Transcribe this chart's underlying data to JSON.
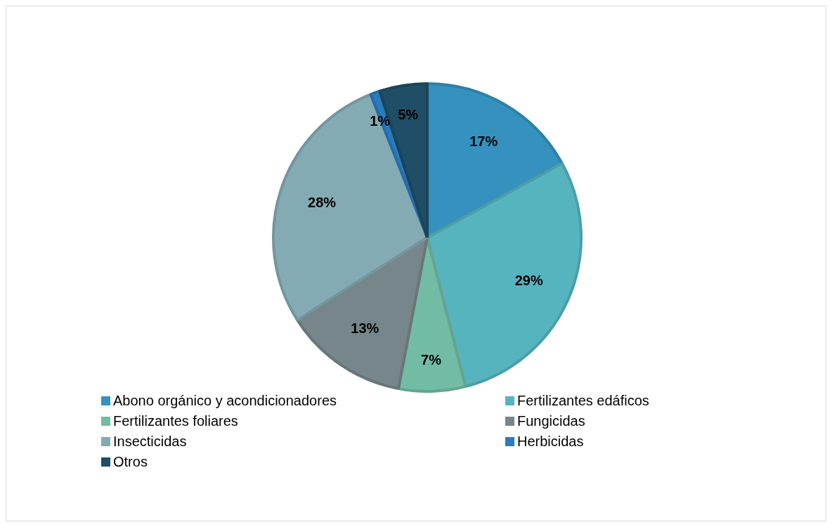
{
  "chart_data": {
    "type": "pie",
    "categories": [
      "Abono orgánico y acondicionadores",
      "Fertilizantes edáficos",
      "Fertilizantes foliares",
      "Fungicidas",
      "Insecticidas",
      "Herbicidas",
      "Otros"
    ],
    "values": [
      17,
      29,
      7,
      13,
      28,
      1,
      5
    ],
    "colors": [
      "#3592be",
      "#56b4bf",
      "#72bba4",
      "#76868a",
      "#84abb3",
      "#2a7cbf",
      "#1f4e66"
    ],
    "value_labels": [
      "17%",
      "29%",
      "7%",
      "13%",
      "28%",
      "1%",
      "5%"
    ],
    "legend": "bottom"
  }
}
